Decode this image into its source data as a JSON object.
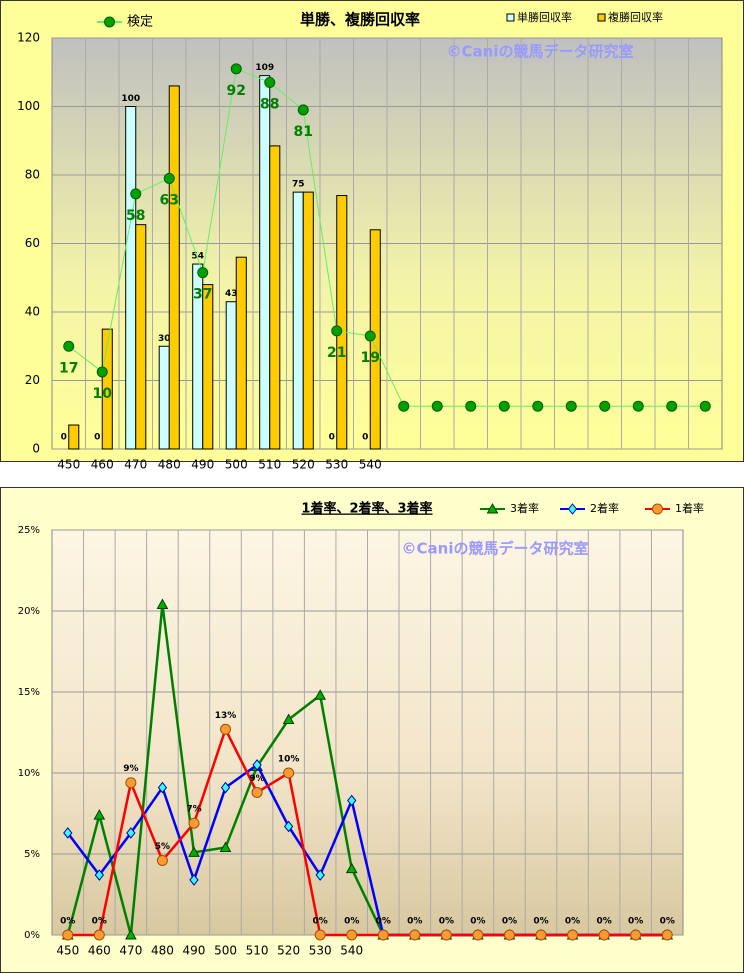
{
  "chart_data": [
    {
      "type": "bar",
      "title": "単勝、複勝回収率",
      "watermark": "©Caniの競馬データ研究室",
      "categories": [
        "450",
        "460",
        "470",
        "480",
        "490",
        "500",
        "510",
        "520",
        "530",
        "540",
        null,
        null,
        null,
        null,
        null,
        null,
        null,
        null,
        null,
        null
      ],
      "ylim": [
        0,
        120
      ],
      "yticks": [
        0,
        20,
        40,
        60,
        80,
        100,
        120
      ],
      "grid": true,
      "series": [
        {
          "name": "単勝回収率",
          "color": "#ccffff",
          "type": "bar",
          "data_labels": true,
          "values": [
            0,
            0,
            100,
            30,
            54,
            43,
            109,
            75,
            0,
            0,
            null,
            null,
            null,
            null,
            null,
            null,
            null,
            null,
            null,
            null
          ]
        },
        {
          "name": "複勝回収率",
          "color": "#ffcc00",
          "type": "bar",
          "values": [
            7,
            35,
            65.5,
            106,
            48,
            56,
            88.5,
            75,
            74,
            64,
            null,
            null,
            null,
            null,
            null,
            null,
            null,
            null,
            null,
            null
          ]
        },
        {
          "name": "検定",
          "color": "#66ee66",
          "marker_color": "#00a000",
          "type": "line",
          "marker": "circle",
          "values": [
            30,
            22.5,
            74.5,
            79,
            51.5,
            111,
            107,
            99,
            34.5,
            33,
            12.5,
            12.5,
            12.5,
            12.5,
            12.5,
            12.5,
            12.5,
            12.5,
            12.5,
            12.5
          ],
          "point_labels": [
            "17",
            "10",
            "58",
            "63",
            "37",
            "92",
            "88",
            "81",
            "21",
            "19"
          ]
        }
      ]
    },
    {
      "type": "line",
      "title": "1着率、2着率、3着率",
      "watermark": "©Caniの競馬データ研究室",
      "categories": [
        "450",
        "460",
        "470",
        "480",
        "490",
        "500",
        "510",
        "520",
        "530",
        "540",
        null,
        null,
        null,
        null,
        null,
        null,
        null,
        null,
        null,
        null
      ],
      "ylim": [
        0,
        25
      ],
      "yticks": [
        {
          "value": 0,
          "label": "0%"
        },
        {
          "value": 5,
          "label": "5%"
        },
        {
          "value": 10,
          "label": "10%"
        },
        {
          "value": 15,
          "label": "15%"
        },
        {
          "value": 20,
          "label": "20%"
        },
        {
          "value": 25,
          "label": "25%"
        }
      ],
      "grid": true,
      "series": [
        {
          "name": "3着率",
          "color": "#008000",
          "marker": "triangle",
          "marker_color": "#00b000",
          "values": [
            0,
            7.4,
            0,
            20.4,
            5.1,
            5.4,
            10.4,
            13.3,
            14.8,
            4.1,
            0,
            0,
            0,
            0,
            0,
            0,
            0,
            0,
            0,
            0
          ]
        },
        {
          "name": "2着率",
          "color": "#0000ff",
          "marker": "diamond",
          "marker_color": "#33ffff",
          "values": [
            6.3,
            3.7,
            6.3,
            9.1,
            3.4,
            9.1,
            10.5,
            6.7,
            3.7,
            8.3,
            0,
            0,
            0,
            0,
            0,
            0,
            0,
            0,
            0,
            0
          ]
        },
        {
          "name": "1着率",
          "color": "#ff0000",
          "marker": "circle",
          "marker_color": "#ff9933",
          "values": [
            0,
            0,
            9.4,
            4.6,
            6.9,
            12.7,
            8.8,
            10,
            0,
            0,
            0,
            0,
            0,
            0,
            0,
            0,
            0,
            0,
            0,
            0
          ],
          "value_labels": [
            "0%",
            "0%",
            "9%",
            "5%",
            "7%",
            "13%",
            "9%",
            "10%",
            "0%",
            "0%",
            "0%",
            "0%",
            "0%",
            "0%",
            "0%",
            "0%",
            "0%",
            "0%",
            "0%",
            "0%"
          ]
        }
      ]
    }
  ]
}
